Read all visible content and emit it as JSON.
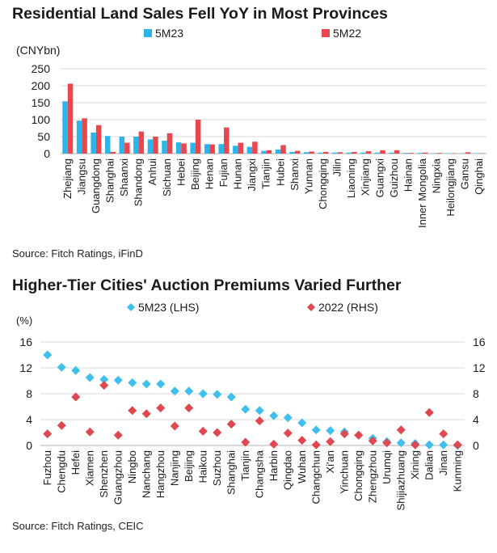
{
  "charts": {
    "c1": {
      "title": "Residential Land Sales Fell YoY in Most Provinces",
      "source": "Source: Fitch Ratings, iFinD"
    },
    "c2": {
      "title": "Higher-Tier Cities' Auction Premiums Varied Further",
      "source": "Source: Fitch Ratings, CEIC"
    }
  },
  "colors": {
    "blue": "#2bb5e8",
    "red": "#e8474f",
    "diamond_blue": "#3fc0ec",
    "diamond_red": "#e0474f",
    "grid": "#d9d9d9",
    "axis": "#b0b0b0"
  },
  "chart_data": [
    {
      "type": "bar",
      "title": "Residential Land Sales Fell YoY in Most Provinces",
      "ylabel": "(CNYbn)",
      "ylim": [
        0,
        250
      ],
      "yticks": [
        0,
        50,
        100,
        150,
        200,
        250
      ],
      "grid": true,
      "legend": "top",
      "categories": [
        "Zhejiang",
        "Jiangsu",
        "Guangdong",
        "Shanghai",
        "Shaanxi",
        "Shandong",
        "Anhui",
        "Sichuan",
        "Hebei",
        "Beijing",
        "Henan",
        "Fujian",
        "Hunan",
        "Jiangxi",
        "Tianjin",
        "Hubei",
        "Shanxi",
        "Yunnan",
        "Chongqing",
        "Jilin",
        "Liaoning",
        "Xinjiang",
        "Guangxi",
        "Guizhou",
        "Hainan",
        "Inner Mongolia",
        "Ningxia",
        "Heilongjiang",
        "Gansu",
        "Qinghai"
      ],
      "series": [
        {
          "name": "5M23",
          "color": "#2bb5e8",
          "values": [
            154,
            97,
            62,
            52,
            50,
            50,
            42,
            38,
            33,
            32,
            28,
            28,
            23,
            20,
            8,
            12,
            5,
            4,
            3,
            3,
            3,
            3,
            3,
            3,
            2,
            2,
            1,
            1,
            1,
            1
          ]
        },
        {
          "name": "5M22",
          "color": "#e8474f",
          "values": [
            206,
            104,
            84,
            5,
            32,
            65,
            50,
            60,
            30,
            100,
            27,
            77,
            32,
            35,
            10,
            25,
            8,
            6,
            5,
            4,
            5,
            7,
            10,
            10,
            2,
            3,
            2,
            1,
            4,
            1
          ]
        }
      ]
    },
    {
      "type": "scatter",
      "title": "Higher-Tier Cities' Auction Premiums Varied Further",
      "ylabel": "(%)",
      "ylim": [
        0,
        16
      ],
      "yticks": [
        0,
        4,
        8,
        12,
        16
      ],
      "grid": true,
      "legend": "top",
      "categories": [
        "Fuzhou",
        "Chengdu",
        "Hefei",
        "Xiamen",
        "Shenzhen",
        "Guangzhou",
        "Ningbo",
        "Nanchang",
        "Hangzhou",
        "Nanjing",
        "Beijing",
        "Haikou",
        "Suzhou",
        "Shanghai",
        "Tianjin",
        "Changsha",
        "Harbin",
        "Qingdao",
        "Wuhan",
        "Changchun",
        "Xi'an",
        "Yinchuan",
        "Chongqing",
        "Zhengzhou",
        "Urumqi",
        "Shijiazhuang",
        "Xining",
        "Dalian",
        "Jinan",
        "Kunming"
      ],
      "series": [
        {
          "name": "5M23 (LHS)",
          "axis": "left",
          "color": "#3fc0ec",
          "values": [
            14,
            12.1,
            11.6,
            10.5,
            10.2,
            10.1,
            9.7,
            9.5,
            9.5,
            8.4,
            8.4,
            8,
            7.9,
            7.5,
            5.6,
            5.4,
            4.6,
            4.3,
            3.5,
            2.4,
            2.3,
            2.1,
            1.6,
            1.1,
            0.6,
            0.4,
            0.3,
            0.1,
            0.1,
            0
          ]
        },
        {
          "name": "2022 (RHS)",
          "axis": "right",
          "color": "#e0474f",
          "values": [
            1.8,
            3.1,
            7.5,
            2.1,
            9.3,
            1.6,
            5.4,
            4.9,
            5.8,
            3,
            5.8,
            2.2,
            2,
            3.3,
            0.5,
            3.8,
            0.2,
            1.9,
            0.8,
            0.1,
            0.6,
            1.8,
            1.6,
            0.7,
            0.4,
            2.4,
            0.1,
            5.1,
            1.8,
            0.1
          ]
        }
      ]
    }
  ]
}
